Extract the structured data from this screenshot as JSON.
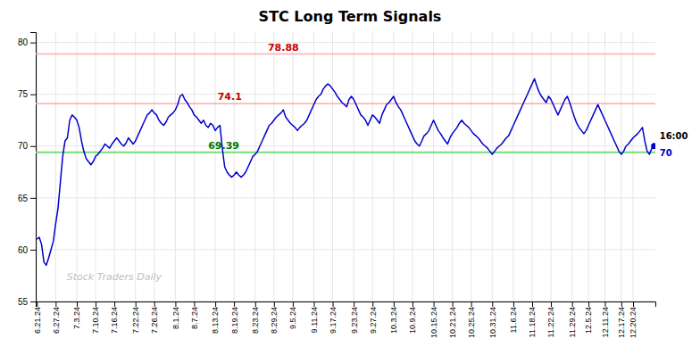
{
  "chart_data": {
    "type": "line",
    "title": "STC Long Term Signals",
    "color": "#0000CC",
    "categories": [
      "6.21.24",
      null,
      null,
      null,
      null,
      null,
      null,
      null,
      "6.27.24",
      null,
      null,
      null,
      null,
      null,
      null,
      null,
      null,
      "7.3.24",
      null,
      null,
      null,
      null,
      null,
      null,
      null,
      "7.10.24",
      null,
      null,
      null,
      null,
      null,
      null,
      null,
      "7.16.24",
      null,
      null,
      null,
      null,
      null,
      null,
      null,
      null,
      "7.22.24",
      null,
      null,
      null,
      null,
      null,
      null,
      null,
      "7.26.24",
      null,
      null,
      null,
      null,
      null,
      null,
      null,
      null,
      "8.1.24",
      null,
      null,
      null,
      null,
      null,
      null,
      null,
      "8.7.24",
      null,
      null,
      null,
      null,
      null,
      null,
      null,
      null,
      "8.13.24",
      null,
      null,
      null,
      null,
      null,
      null,
      null,
      "8.19.24",
      null,
      null,
      null,
      null,
      null,
      null,
      null,
      null,
      "8.23.24",
      null,
      null,
      null,
      null,
      null,
      null,
      null,
      "8.29.24",
      null,
      null,
      null,
      null,
      null,
      null,
      null,
      "9.5.24",
      null,
      null,
      null,
      null,
      null,
      null,
      null,
      null,
      "9.11.24",
      null,
      null,
      null,
      null,
      null,
      null,
      null,
      "9.17.24",
      null,
      null,
      null,
      null,
      null,
      null,
      null,
      null,
      "9.23.24",
      null,
      null,
      null,
      null,
      null,
      null,
      null,
      "9.27.24",
      null,
      null,
      null,
      null,
      null,
      null,
      null,
      null,
      "10.3.24",
      null,
      null,
      null,
      null,
      null,
      null,
      null,
      "10.9.24",
      null,
      null,
      null,
      null,
      null,
      null,
      null,
      null,
      "10.15.24",
      null,
      null,
      null,
      null,
      null,
      null,
      null,
      "10.21.24",
      null,
      null,
      null,
      null,
      null,
      null,
      null,
      "10.25.24",
      null,
      null,
      null,
      null,
      null,
      null,
      null,
      null,
      "10.31.24",
      null,
      null,
      null,
      null,
      null,
      null,
      null,
      null,
      "11.6.24",
      null,
      null,
      null,
      null,
      null,
      null,
      null,
      "11.18.24",
      null,
      null,
      null,
      null,
      null,
      null,
      null,
      "11.22.24",
      null,
      null,
      null,
      null,
      null,
      null,
      null,
      null,
      "11.29.24",
      null,
      null,
      null,
      null,
      null,
      null,
      "12.5.24",
      null,
      null,
      null,
      null,
      null,
      null,
      "12.11.24",
      null,
      null,
      null,
      null,
      null,
      null,
      "12.17.24",
      null,
      null,
      null,
      null,
      "12.20.24",
      null,
      null,
      null,
      null,
      null,
      null,
      null,
      null,
      null
    ],
    "values": [
      61.0,
      61.2,
      60.5,
      58.8,
      58.5,
      59.2,
      60.0,
      60.8,
      62.5,
      64.0,
      66.5,
      69.0,
      70.5,
      70.8,
      72.5,
      73.0,
      72.8,
      72.5,
      71.8,
      70.5,
      69.5,
      68.8,
      68.5,
      68.2,
      68.5,
      69.0,
      69.2,
      69.5,
      69.8,
      70.2,
      70.0,
      69.8,
      70.2,
      70.5,
      70.8,
      70.5,
      70.2,
      70.0,
      70.3,
      70.8,
      70.5,
      70.2,
      70.5,
      71.0,
      71.5,
      72.0,
      72.5,
      73.0,
      73.2,
      73.5,
      73.2,
      73.0,
      72.5,
      72.2,
      72.0,
      72.3,
      72.8,
      73.0,
      73.2,
      73.5,
      74.0,
      74.8,
      75.0,
      74.5,
      74.2,
      73.8,
      73.5,
      73.0,
      72.8,
      72.5,
      72.2,
      72.5,
      72.0,
      71.8,
      72.2,
      72.0,
      71.5,
      71.8,
      72.0,
      69.8,
      68.0,
      67.5,
      67.2,
      67.0,
      67.2,
      67.5,
      67.2,
      67.0,
      67.2,
      67.5,
      68.0,
      68.5,
      69.0,
      69.2,
      69.5,
      70.0,
      70.5,
      71.0,
      71.5,
      72.0,
      72.2,
      72.5,
      72.8,
      73.0,
      73.2,
      73.5,
      72.8,
      72.5,
      72.2,
      72.0,
      71.8,
      71.5,
      71.8,
      72.0,
      72.2,
      72.5,
      73.0,
      73.5,
      74.0,
      74.5,
      74.8,
      75.0,
      75.5,
      75.8,
      76.0,
      75.8,
      75.5,
      75.2,
      74.8,
      74.5,
      74.2,
      74.0,
      73.8,
      74.5,
      74.8,
      74.5,
      74.0,
      73.5,
      73.0,
      72.8,
      72.5,
      72.0,
      72.5,
      73.0,
      72.8,
      72.5,
      72.2,
      73.0,
      73.5,
      74.0,
      74.2,
      74.5,
      74.8,
      74.2,
      73.8,
      73.5,
      73.0,
      72.5,
      72.0,
      71.5,
      71.0,
      70.5,
      70.2,
      70.0,
      70.5,
      71.0,
      71.2,
      71.5,
      72.0,
      72.5,
      72.0,
      71.5,
      71.2,
      70.8,
      70.5,
      70.2,
      70.8,
      71.2,
      71.5,
      71.8,
      72.2,
      72.5,
      72.2,
      72.0,
      71.8,
      71.5,
      71.2,
      71.0,
      70.8,
      70.5,
      70.2,
      70.0,
      69.8,
      69.5,
      69.2,
      69.5,
      69.8,
      70.0,
      70.2,
      70.5,
      70.8,
      71.0,
      71.5,
      72.0,
      72.5,
      73.0,
      73.5,
      74.0,
      74.5,
      75.0,
      75.5,
      76.0,
      76.5,
      75.8,
      75.2,
      74.8,
      74.5,
      74.2,
      74.8,
      74.5,
      74.0,
      73.5,
      73.0,
      73.5,
      74.0,
      74.5,
      74.8,
      74.2,
      73.5,
      72.8,
      72.2,
      71.8,
      71.5,
      71.2,
      71.5,
      72.0,
      72.5,
      73.0,
      73.5,
      74.0,
      73.5,
      73.0,
      72.5,
      72.0,
      71.5,
      71.0,
      70.5,
      70.0,
      69.5,
      69.2,
      69.5,
      70.0,
      70.2,
      70.5,
      70.8,
      71.0,
      71.2,
      71.5,
      71.8,
      70.5,
      69.5,
      69.2,
      69.8,
      70.0
    ],
    "ylim": [
      55,
      81
    ],
    "yticks": [
      55,
      60,
      65,
      70,
      75,
      80
    ],
    "grid": true,
    "reference_lines": [
      {
        "value": 78.88,
        "label": "78.88",
        "color": "#ffaaaa",
        "label_color": "#cc0000"
      },
      {
        "value": 74.1,
        "label": "74.1",
        "color": "#ffaaaa",
        "label_color": "#cc0000"
      },
      {
        "value": 69.39,
        "label": "69.39",
        "color": "#77dd77",
        "label_color": "#007700"
      }
    ],
    "end_point": {
      "value": 70,
      "label": "70",
      "note": "16:00"
    },
    "watermark": "Stock Traders Daily",
    "watermark_color": "#c0c0c0"
  }
}
